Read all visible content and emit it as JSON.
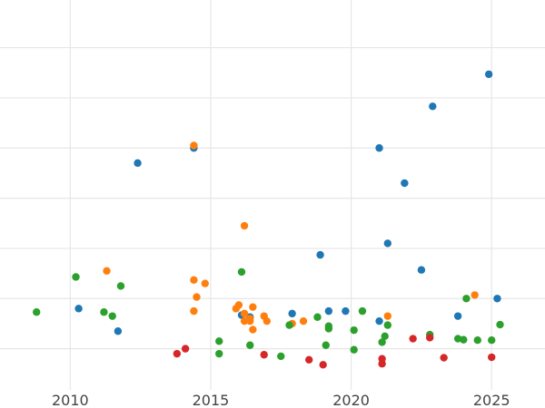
{
  "chart_data": {
    "type": "scatter",
    "title": "",
    "xlabel": "",
    "ylabel": "",
    "xlim": [
      2007.5,
      2026.9
    ],
    "ylim": [
      -0.32,
      7.45
    ],
    "grid": true,
    "legend": "none",
    "x_ticks": [
      {
        "value": 2010,
        "label": "2010"
      },
      {
        "value": 2015,
        "label": "2015"
      },
      {
        "value": 2020,
        "label": "2020"
      },
      {
        "value": 2025,
        "label": "2025"
      }
    ],
    "y_gridlines": [
      0.5,
      1.5,
      2.5,
      3.5,
      4.5,
      5.5,
      6.5,
      7.5
    ],
    "series": [
      {
        "color": "#1f77b4",
        "points": [
          [
            2010.3,
            1.3
          ],
          [
            2011.7,
            0.85
          ],
          [
            2012.4,
            4.2
          ],
          [
            2014.4,
            4.5
          ],
          [
            2016.1,
            1.17
          ],
          [
            2016.4,
            1.13
          ],
          [
            2017.9,
            1.2
          ],
          [
            2018.9,
            2.37
          ],
          [
            2019.2,
            1.25
          ],
          [
            2019.8,
            1.25
          ],
          [
            2021.0,
            4.5
          ],
          [
            2021.0,
            1.05
          ],
          [
            2021.3,
            2.6
          ],
          [
            2021.9,
            3.8
          ],
          [
            2022.5,
            2.07
          ],
          [
            2022.9,
            5.33
          ],
          [
            2023.8,
            1.15
          ],
          [
            2024.9,
            5.97
          ],
          [
            2025.2,
            1.5
          ]
        ]
      },
      {
        "color": "#ff7f0e",
        "points": [
          [
            2011.3,
            2.05
          ],
          [
            2014.4,
            4.55
          ],
          [
            2014.4,
            1.87
          ],
          [
            2014.5,
            1.53
          ],
          [
            2014.4,
            1.25
          ],
          [
            2014.8,
            1.8
          ],
          [
            2015.9,
            1.3
          ],
          [
            2016.0,
            1.37
          ],
          [
            2016.2,
            1.2
          ],
          [
            2016.2,
            1.05
          ],
          [
            2016.2,
            2.95
          ],
          [
            2016.4,
            1.1
          ],
          [
            2016.4,
            1.05
          ],
          [
            2016.5,
            1.33
          ],
          [
            2016.5,
            0.88
          ],
          [
            2016.9,
            1.15
          ],
          [
            2017.0,
            1.05
          ],
          [
            2017.9,
            1.0
          ],
          [
            2018.3,
            1.05
          ],
          [
            2021.3,
            1.15
          ],
          [
            2024.4,
            1.57
          ]
        ]
      },
      {
        "color": "#2ca02c",
        "points": [
          [
            2008.8,
            1.23
          ],
          [
            2010.2,
            1.93
          ],
          [
            2011.2,
            1.23
          ],
          [
            2011.5,
            1.15
          ],
          [
            2011.8,
            1.75
          ],
          [
            2015.3,
            0.65
          ],
          [
            2015.3,
            0.4
          ],
          [
            2016.1,
            2.03
          ],
          [
            2016.4,
            0.57
          ],
          [
            2017.5,
            0.35
          ],
          [
            2017.8,
            0.97
          ],
          [
            2018.8,
            1.13
          ],
          [
            2019.1,
            0.57
          ],
          [
            2019.2,
            0.95
          ],
          [
            2019.2,
            0.9
          ],
          [
            2020.1,
            0.87
          ],
          [
            2020.1,
            0.48
          ],
          [
            2020.4,
            1.25
          ],
          [
            2021.1,
            0.63
          ],
          [
            2021.2,
            0.75
          ],
          [
            2021.3,
            0.97
          ],
          [
            2022.8,
            0.78
          ],
          [
            2023.8,
            0.7
          ],
          [
            2024.0,
            0.68
          ],
          [
            2024.1,
            1.5
          ],
          [
            2024.5,
            0.67
          ],
          [
            2025.0,
            0.67
          ],
          [
            2025.3,
            0.98
          ]
        ]
      },
      {
        "color": "#d62728",
        "points": [
          [
            2013.8,
            0.4
          ],
          [
            2014.1,
            0.5
          ],
          [
            2016.9,
            0.38
          ],
          [
            2018.5,
            0.28
          ],
          [
            2019.0,
            0.18
          ],
          [
            2021.1,
            0.3
          ],
          [
            2021.1,
            0.2
          ],
          [
            2022.2,
            0.7
          ],
          [
            2022.8,
            0.72
          ],
          [
            2023.3,
            0.32
          ],
          [
            2025.0,
            0.33
          ]
        ]
      }
    ]
  }
}
